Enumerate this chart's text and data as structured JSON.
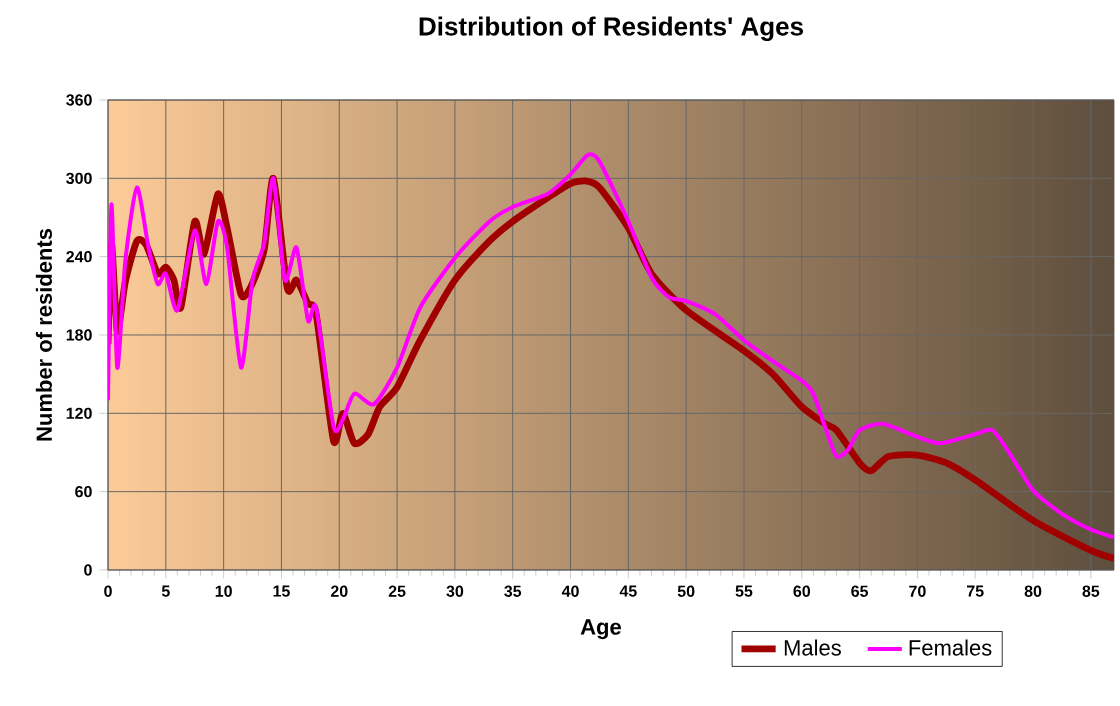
{
  "chart_data": {
    "type": "line",
    "title": "Distribution of Residents' Ages",
    "xlabel": "Age",
    "ylabel": "Number of residents",
    "xlim": [
      0,
      87
    ],
    "ylim": [
      0,
      360
    ],
    "xticks": [
      0,
      5,
      10,
      15,
      20,
      25,
      30,
      35,
      40,
      45,
      50,
      55,
      60,
      65,
      70,
      75,
      80,
      85
    ],
    "yticks": [
      0,
      60,
      120,
      180,
      240,
      300,
      360
    ],
    "grid": true,
    "legend": "bottom right",
    "marker": "none",
    "line_style": "solid",
    "series": [
      {
        "name": "Males",
        "color": "#a00000",
        "x": [
          0,
          0.3,
          0.8,
          1.5,
          2.5,
          3.3,
          4.3,
          5,
          5.7,
          6.3,
          7.5,
          8.3,
          9.5,
          10.3,
          11.5,
          12.3,
          13.5,
          14.3,
          15.5,
          16.3,
          17.3,
          18,
          19.5,
          20.3,
          21.3,
          22.5,
          23.5,
          25,
          27,
          30,
          33,
          35,
          38,
          40,
          41.3,
          42.5,
          45,
          47,
          50,
          55,
          57.5,
          60,
          62,
          63,
          65,
          66,
          67.5,
          70,
          72.5,
          75,
          80,
          85,
          87
        ],
        "values": [
          173,
          250,
          183,
          221,
          252,
          249,
          227,
          232,
          222,
          201,
          267,
          242,
          288,
          262,
          211,
          216,
          245,
          300,
          216,
          222,
          204,
          196,
          99,
          120,
          97,
          104,
          125,
          140,
          176,
          222,
          252,
          267,
          285,
          296,
          298,
          293,
          262,
          227,
          199,
          168,
          150,
          125,
          112,
          107,
          82,
          76,
          87,
          88,
          82,
          69,
          38,
          15,
          9
        ]
      },
      {
        "name": "Females",
        "color": "#ff00ff",
        "x": [
          0,
          0.3,
          0.8,
          1.5,
          2.5,
          3.5,
          4.3,
          5,
          6,
          7.5,
          8.5,
          9.5,
          10.3,
          11.5,
          12.5,
          13.5,
          14.3,
          15.3,
          16.3,
          17.3,
          18,
          19.5,
          20.3,
          21.3,
          23,
          25,
          27,
          30,
          33,
          35,
          38,
          40,
          41.5,
          42.5,
          45,
          47,
          48.5,
          50,
          52.5,
          55,
          57.5,
          60,
          61,
          62,
          63,
          64,
          65,
          67,
          70,
          72,
          75,
          76.5,
          78,
          80,
          82.5,
          85,
          87
        ],
        "values": [
          130,
          280,
          155,
          237,
          293,
          247,
          219,
          227,
          199,
          260,
          219,
          267,
          247,
          155,
          222,
          250,
          300,
          222,
          247,
          191,
          201,
          110,
          115,
          135,
          127,
          155,
          201,
          239,
          267,
          278,
          288,
          303,
          318,
          313,
          267,
          224,
          209,
          206,
          196,
          176,
          160,
          145,
          135,
          110,
          87,
          92,
          107,
          112,
          102,
          97,
          104,
          107,
          89,
          61,
          43,
          31,
          25
        ]
      }
    ]
  }
}
